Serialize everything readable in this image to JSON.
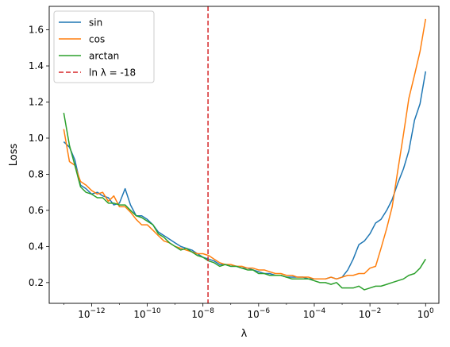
{
  "chart_data": {
    "type": "line",
    "title": "",
    "xlabel": "λ",
    "ylabel": "Loss",
    "xscale": "log",
    "xlim": [
      3e-14,
      3.0
    ],
    "ylim": [
      0.085,
      1.73
    ],
    "grid": false,
    "legend_position": "top-left",
    "x_ticks": [
      {
        "value": 1e-12,
        "base": "10",
        "exp": "−12"
      },
      {
        "value": 1e-10,
        "base": "10",
        "exp": "−10"
      },
      {
        "value": 1e-08,
        "base": "10",
        "exp": "−8"
      },
      {
        "value": 1e-06,
        "base": "10",
        "exp": "−6"
      },
      {
        "value": 0.0001,
        "base": "10",
        "exp": "−4"
      },
      {
        "value": 0.01,
        "base": "10",
        "exp": "−2"
      },
      {
        "value": 1,
        "base": "10",
        "exp": "0"
      }
    ],
    "y_ticks": [
      {
        "value": 0.2,
        "label": "0.2"
      },
      {
        "value": 0.4,
        "label": "0.4"
      },
      {
        "value": 0.6,
        "label": "0.6"
      },
      {
        "value": 0.8,
        "label": "0.8"
      },
      {
        "value": 1.0,
        "label": "1.0"
      },
      {
        "value": 1.2,
        "label": "1.2"
      },
      {
        "value": 1.4,
        "label": "1.4"
      },
      {
        "value": 1.6,
        "label": "1.6"
      }
    ],
    "vline": {
      "label": "ln λ = -18",
      "x": 1.523e-08,
      "color": "#d62728",
      "style": "dashed"
    },
    "series": [
      {
        "name": "sin",
        "color": "#1f77b4",
        "points": [
          [
            1e-13,
            0.98
          ],
          [
            1.6e-13,
            0.95
          ],
          [
            2.5e-13,
            0.88
          ],
          [
            4e-13,
            0.74
          ],
          [
            6.3e-13,
            0.72
          ],
          [
            1e-12,
            0.69
          ],
          [
            1.6e-12,
            0.7
          ],
          [
            2.5e-12,
            0.68
          ],
          [
            4e-12,
            0.67
          ],
          [
            6.3e-12,
            0.63
          ],
          [
            1e-11,
            0.64
          ],
          [
            1.6e-11,
            0.72
          ],
          [
            2.5e-11,
            0.63
          ],
          [
            4e-11,
            0.57
          ],
          [
            6.3e-11,
            0.57
          ],
          [
            1e-10,
            0.55
          ],
          [
            1.6e-10,
            0.52
          ],
          [
            2.5e-10,
            0.48
          ],
          [
            4e-10,
            0.46
          ],
          [
            6.3e-10,
            0.44
          ],
          [
            1e-09,
            0.42
          ],
          [
            1.6e-09,
            0.4
          ],
          [
            2.5e-09,
            0.39
          ],
          [
            4e-09,
            0.38
          ],
          [
            6.3e-09,
            0.36
          ],
          [
            1e-08,
            0.34
          ],
          [
            1.6e-08,
            0.33
          ],
          [
            2.5e-08,
            0.32
          ],
          [
            4e-08,
            0.3
          ],
          [
            6.3e-08,
            0.3
          ],
          [
            1e-07,
            0.29
          ],
          [
            1.6e-07,
            0.29
          ],
          [
            2.5e-07,
            0.28
          ],
          [
            4e-07,
            0.28
          ],
          [
            6.3e-07,
            0.27
          ],
          [
            1e-06,
            0.26
          ],
          [
            1.6e-06,
            0.25
          ],
          [
            2.5e-06,
            0.25
          ],
          [
            4e-06,
            0.24
          ],
          [
            6.3e-06,
            0.24
          ],
          [
            1e-05,
            0.23
          ],
          [
            1.6e-05,
            0.23
          ],
          [
            2.5e-05,
            0.23
          ],
          [
            4e-05,
            0.23
          ],
          [
            6.3e-05,
            0.22
          ],
          [
            0.0001,
            0.22
          ],
          [
            0.00016,
            0.22
          ],
          [
            0.00025,
            0.22
          ],
          [
            0.0004,
            0.23
          ],
          [
            0.00063,
            0.22
          ],
          [
            0.001,
            0.23
          ],
          [
            0.0016,
            0.27
          ],
          [
            0.0025,
            0.33
          ],
          [
            0.004,
            0.41
          ],
          [
            0.0063,
            0.43
          ],
          [
            0.01,
            0.47
          ],
          [
            0.016,
            0.53
          ],
          [
            0.025,
            0.55
          ],
          [
            0.04,
            0.6
          ],
          [
            0.063,
            0.66
          ],
          [
            0.1,
            0.75
          ],
          [
            0.16,
            0.83
          ],
          [
            0.25,
            0.93
          ],
          [
            0.4,
            1.1
          ],
          [
            0.63,
            1.19
          ],
          [
            1,
            1.37
          ]
        ]
      },
      {
        "name": "cos",
        "color": "#ff7f0e",
        "points": [
          [
            1e-13,
            1.05
          ],
          [
            1.6e-13,
            0.87
          ],
          [
            2.5e-13,
            0.85
          ],
          [
            4e-13,
            0.76
          ],
          [
            6.3e-13,
            0.74
          ],
          [
            1e-12,
            0.71
          ],
          [
            1.6e-12,
            0.69
          ],
          [
            2.5e-12,
            0.7
          ],
          [
            4e-12,
            0.65
          ],
          [
            6.3e-12,
            0.68
          ],
          [
            1e-11,
            0.62
          ],
          [
            1.6e-11,
            0.62
          ],
          [
            2.5e-11,
            0.59
          ],
          [
            4e-11,
            0.55
          ],
          [
            6.3e-11,
            0.52
          ],
          [
            1e-10,
            0.52
          ],
          [
            1.6e-10,
            0.49
          ],
          [
            2.5e-10,
            0.46
          ],
          [
            4e-10,
            0.43
          ],
          [
            6.3e-10,
            0.42
          ],
          [
            1e-09,
            0.4
          ],
          [
            1.6e-09,
            0.39
          ],
          [
            2.5e-09,
            0.38
          ],
          [
            4e-09,
            0.37
          ],
          [
            6.3e-09,
            0.36
          ],
          [
            1e-08,
            0.36
          ],
          [
            1.6e-08,
            0.35
          ],
          [
            2.5e-08,
            0.33
          ],
          [
            4e-08,
            0.31
          ],
          [
            6.3e-08,
            0.3
          ],
          [
            1e-07,
            0.3
          ],
          [
            1.6e-07,
            0.29
          ],
          [
            2.5e-07,
            0.29
          ],
          [
            4e-07,
            0.28
          ],
          [
            6.3e-07,
            0.28
          ],
          [
            1e-06,
            0.27
          ],
          [
            1.6e-06,
            0.27
          ],
          [
            2.5e-06,
            0.26
          ],
          [
            4e-06,
            0.25
          ],
          [
            6.3e-06,
            0.25
          ],
          [
            1e-05,
            0.24
          ],
          [
            1.6e-05,
            0.24
          ],
          [
            2.5e-05,
            0.23
          ],
          [
            4e-05,
            0.23
          ],
          [
            6.3e-05,
            0.23
          ],
          [
            0.0001,
            0.22
          ],
          [
            0.00016,
            0.22
          ],
          [
            0.00025,
            0.22
          ],
          [
            0.0004,
            0.23
          ],
          [
            0.00063,
            0.22
          ],
          [
            0.001,
            0.23
          ],
          [
            0.0016,
            0.24
          ],
          [
            0.0025,
            0.24
          ],
          [
            0.004,
            0.25
          ],
          [
            0.0063,
            0.25
          ],
          [
            0.01,
            0.28
          ],
          [
            0.016,
            0.29
          ],
          [
            0.025,
            0.39
          ],
          [
            0.04,
            0.5
          ],
          [
            0.063,
            0.62
          ],
          [
            0.1,
            0.82
          ],
          [
            0.16,
            1.02
          ],
          [
            0.25,
            1.22
          ],
          [
            0.4,
            1.35
          ],
          [
            0.63,
            1.48
          ],
          [
            1,
            1.66
          ]
        ]
      },
      {
        "name": "arctan",
        "color": "#2ca02c",
        "points": [
          [
            1e-13,
            1.14
          ],
          [
            1.6e-13,
            0.96
          ],
          [
            2.5e-13,
            0.85
          ],
          [
            4e-13,
            0.73
          ],
          [
            6.3e-13,
            0.7
          ],
          [
            1e-12,
            0.69
          ],
          [
            1.6e-12,
            0.67
          ],
          [
            2.5e-12,
            0.67
          ],
          [
            4e-12,
            0.64
          ],
          [
            6.3e-12,
            0.64
          ],
          [
            1e-11,
            0.63
          ],
          [
            1.6e-11,
            0.63
          ],
          [
            2.5e-11,
            0.6
          ],
          [
            4e-11,
            0.57
          ],
          [
            6.3e-11,
            0.56
          ],
          [
            1e-10,
            0.54
          ],
          [
            1.6e-10,
            0.52
          ],
          [
            2.5e-10,
            0.47
          ],
          [
            4e-10,
            0.45
          ],
          [
            6.3e-10,
            0.42
          ],
          [
            1e-09,
            0.4
          ],
          [
            1.6e-09,
            0.38
          ],
          [
            2.5e-09,
            0.39
          ],
          [
            4e-09,
            0.37
          ],
          [
            6.3e-09,
            0.35
          ],
          [
            1e-08,
            0.34
          ],
          [
            1.6e-08,
            0.32
          ],
          [
            2.5e-08,
            0.31
          ],
          [
            4e-08,
            0.29
          ],
          [
            6.3e-08,
            0.3
          ],
          [
            1e-07,
            0.29
          ],
          [
            1.6e-07,
            0.29
          ],
          [
            2.5e-07,
            0.28
          ],
          [
            4e-07,
            0.27
          ],
          [
            6.3e-07,
            0.27
          ],
          [
            1e-06,
            0.25
          ],
          [
            1.6e-06,
            0.25
          ],
          [
            2.5e-06,
            0.24
          ],
          [
            4e-06,
            0.24
          ],
          [
            6.3e-06,
            0.24
          ],
          [
            1e-05,
            0.23
          ],
          [
            1.6e-05,
            0.22
          ],
          [
            2.5e-05,
            0.22
          ],
          [
            4e-05,
            0.22
          ],
          [
            6.3e-05,
            0.22
          ],
          [
            0.0001,
            0.21
          ],
          [
            0.00016,
            0.2
          ],
          [
            0.00025,
            0.2
          ],
          [
            0.0004,
            0.19
          ],
          [
            0.00063,
            0.2
          ],
          [
            0.001,
            0.17
          ],
          [
            0.0016,
            0.17
          ],
          [
            0.0025,
            0.17
          ],
          [
            0.004,
            0.18
          ],
          [
            0.0063,
            0.16
          ],
          [
            0.01,
            0.17
          ],
          [
            0.016,
            0.18
          ],
          [
            0.025,
            0.18
          ],
          [
            0.04,
            0.19
          ],
          [
            0.063,
            0.2
          ],
          [
            0.1,
            0.21
          ],
          [
            0.16,
            0.22
          ],
          [
            0.25,
            0.24
          ],
          [
            0.4,
            0.25
          ],
          [
            0.63,
            0.28
          ],
          [
            1,
            0.33
          ]
        ]
      }
    ]
  }
}
